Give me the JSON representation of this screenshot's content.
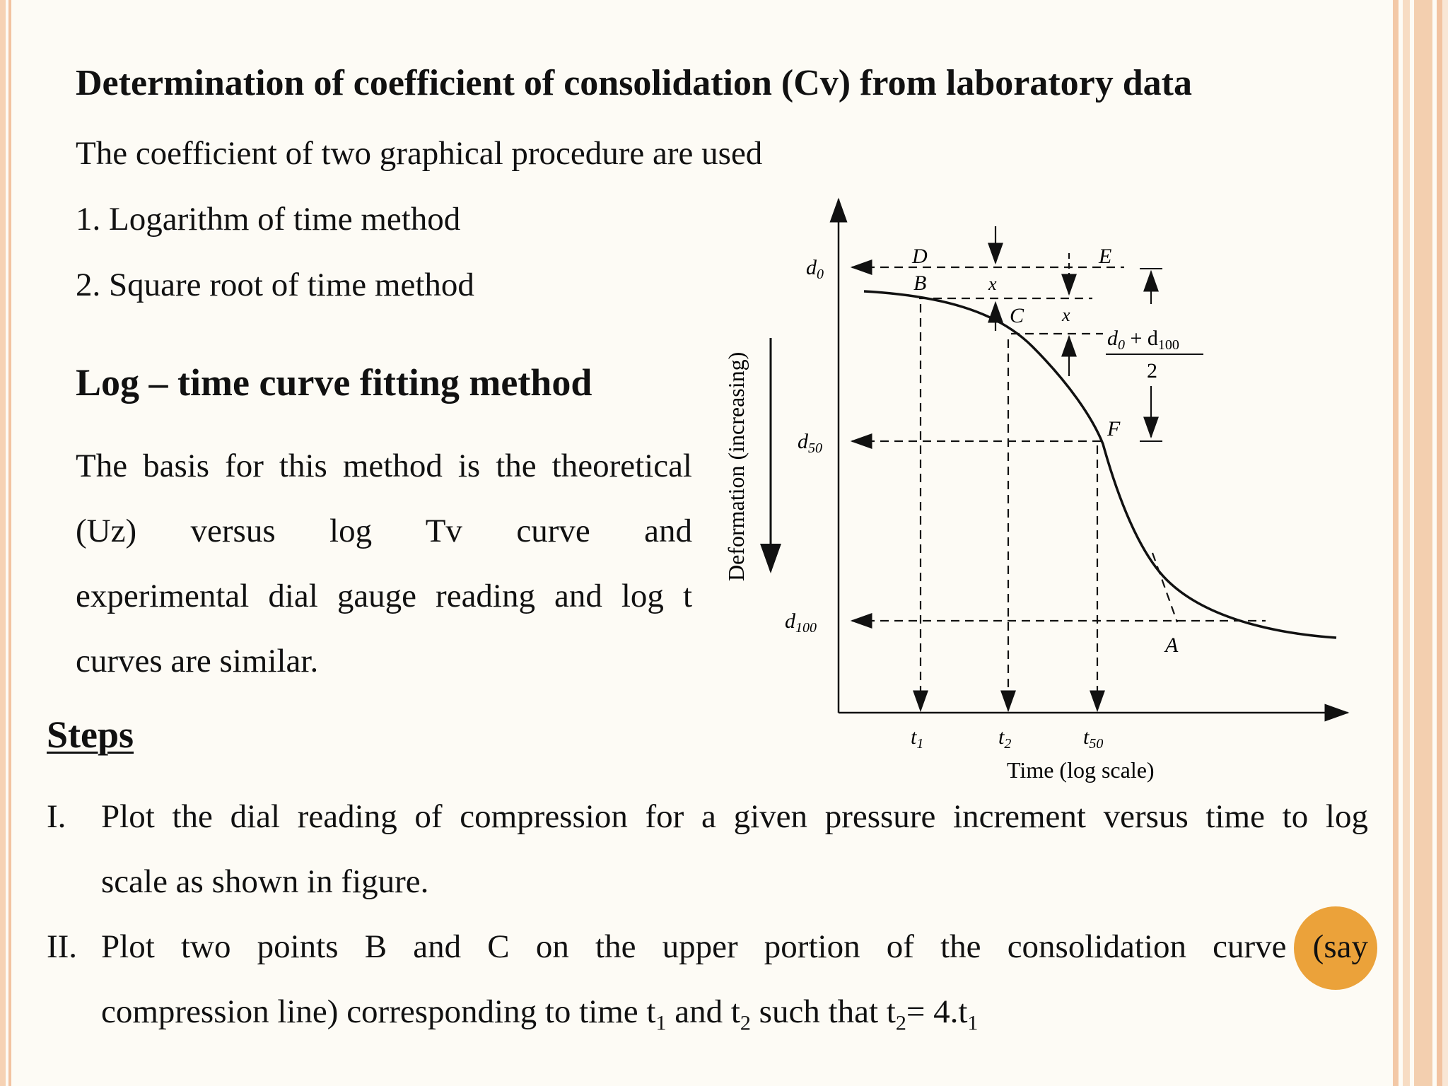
{
  "slide": {
    "title": "Determination of coefficient of consolidation (Cv) from laboratory data",
    "intro": "The coefficient of two graphical procedure are used",
    "methods": [
      "1. Logarithm of time method",
      "2. Square root of time method"
    ],
    "section_heading": "Log – time curve fitting method",
    "paragraph_lines": [
      "The basis for this method is the theoretical",
      "(Uz) versus log Tv curve and",
      "experimental dial gauge reading and log t",
      "curves are similar."
    ],
    "steps_heading": "Steps",
    "steps": [
      {
        "num": "I.",
        "line1": "Plot the dial reading of compression for a given pressure increment versus time to log",
        "line2": "scale as shown in figure."
      },
      {
        "num": "II.",
        "line1": "Plot two points B and C on the upper portion of the consolidation curve (say",
        "line2_pre": "compression line) corresponding to time t",
        "sub1": "1",
        "line2_mid": " and t",
        "sub2": "2",
        "line2_mid2": " such that t",
        "sub3": "2",
        "line2_mid3": "= 4.t",
        "sub4": "1"
      }
    ]
  },
  "figure": {
    "y_axis_label": "Deformation (increasing)",
    "x_axis_label": "Time (log scale)",
    "y_ticks": {
      "d0": "d",
      "d0_sub": "0",
      "d50": "d",
      "d50_sub": "50",
      "d100": "d",
      "d100_sub": "100"
    },
    "x_ticks": {
      "t1": "t",
      "t1_sub": "1",
      "t2": "t",
      "t2_sub": "2",
      "t50": "t",
      "t50_sub": "50"
    },
    "points": {
      "D": "D",
      "B": "B",
      "C": "C",
      "E": "E",
      "F": "F",
      "A": "A",
      "x": "x"
    },
    "annotation": {
      "numerator": "d",
      "num_sub0": "0",
      "plus": " + d",
      "num_sub100": "100",
      "denominator": "2"
    }
  },
  "colors": {
    "background": "#fdfbf5",
    "border": "#f3c8a6",
    "cursor": "#eba23a"
  }
}
